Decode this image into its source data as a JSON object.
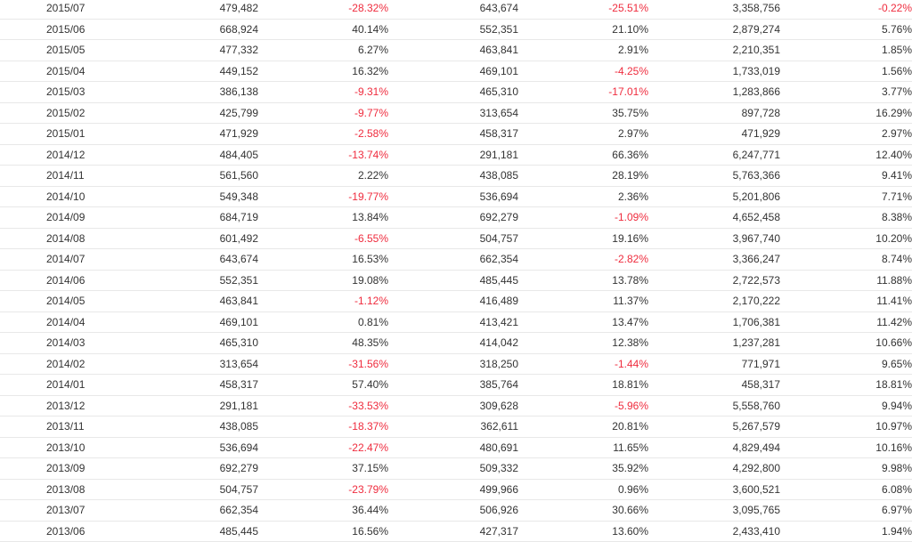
{
  "colors": {
    "negative": "#ef2c3e",
    "text": "#333333",
    "row_border": "#e8e8e8"
  },
  "rows": [
    [
      "2015/07",
      "479,482",
      "-28.32%",
      "643,674",
      "-25.51%",
      "3,358,756",
      "-0.22%"
    ],
    [
      "2015/06",
      "668,924",
      "40.14%",
      "552,351",
      "21.10%",
      "2,879,274",
      "5.76%"
    ],
    [
      "2015/05",
      "477,332",
      "6.27%",
      "463,841",
      "2.91%",
      "2,210,351",
      "1.85%"
    ],
    [
      "2015/04",
      "449,152",
      "16.32%",
      "469,101",
      "-4.25%",
      "1,733,019",
      "1.56%"
    ],
    [
      "2015/03",
      "386,138",
      "-9.31%",
      "465,310",
      "-17.01%",
      "1,283,866",
      "3.77%"
    ],
    [
      "2015/02",
      "425,799",
      "-9.77%",
      "313,654",
      "35.75%",
      "897,728",
      "16.29%"
    ],
    [
      "2015/01",
      "471,929",
      "-2.58%",
      "458,317",
      "2.97%",
      "471,929",
      "2.97%"
    ],
    [
      "2014/12",
      "484,405",
      "-13.74%",
      "291,181",
      "66.36%",
      "6,247,771",
      "12.40%"
    ],
    [
      "2014/11",
      "561,560",
      "2.22%",
      "438,085",
      "28.19%",
      "5,763,366",
      "9.41%"
    ],
    [
      "2014/10",
      "549,348",
      "-19.77%",
      "536,694",
      "2.36%",
      "5,201,806",
      "7.71%"
    ],
    [
      "2014/09",
      "684,719",
      "13.84%",
      "692,279",
      "-1.09%",
      "4,652,458",
      "8.38%"
    ],
    [
      "2014/08",
      "601,492",
      "-6.55%",
      "504,757",
      "19.16%",
      "3,967,740",
      "10.20%"
    ],
    [
      "2014/07",
      "643,674",
      "16.53%",
      "662,354",
      "-2.82%",
      "3,366,247",
      "8.74%"
    ],
    [
      "2014/06",
      "552,351",
      "19.08%",
      "485,445",
      "13.78%",
      "2,722,573",
      "11.88%"
    ],
    [
      "2014/05",
      "463,841",
      "-1.12%",
      "416,489",
      "11.37%",
      "2,170,222",
      "11.41%"
    ],
    [
      "2014/04",
      "469,101",
      "0.81%",
      "413,421",
      "13.47%",
      "1,706,381",
      "11.42%"
    ],
    [
      "2014/03",
      "465,310",
      "48.35%",
      "414,042",
      "12.38%",
      "1,237,281",
      "10.66%"
    ],
    [
      "2014/02",
      "313,654",
      "-31.56%",
      "318,250",
      "-1.44%",
      "771,971",
      "9.65%"
    ],
    [
      "2014/01",
      "458,317",
      "57.40%",
      "385,764",
      "18.81%",
      "458,317",
      "18.81%"
    ],
    [
      "2013/12",
      "291,181",
      "-33.53%",
      "309,628",
      "-5.96%",
      "5,558,760",
      "9.94%"
    ],
    [
      "2013/11",
      "438,085",
      "-18.37%",
      "362,611",
      "20.81%",
      "5,267,579",
      "10.97%"
    ],
    [
      "2013/10",
      "536,694",
      "-22.47%",
      "480,691",
      "11.65%",
      "4,829,494",
      "10.16%"
    ],
    [
      "2013/09",
      "692,279",
      "37.15%",
      "509,332",
      "35.92%",
      "4,292,800",
      "9.98%"
    ],
    [
      "2013/08",
      "504,757",
      "-23.79%",
      "499,966",
      "0.96%",
      "3,600,521",
      "6.08%"
    ],
    [
      "2013/07",
      "662,354",
      "36.44%",
      "506,926",
      "30.66%",
      "3,095,765",
      "6.97%"
    ],
    [
      "2013/06",
      "485,445",
      "16.56%",
      "427,317",
      "13.60%",
      "2,433,410",
      "1.94%"
    ]
  ]
}
